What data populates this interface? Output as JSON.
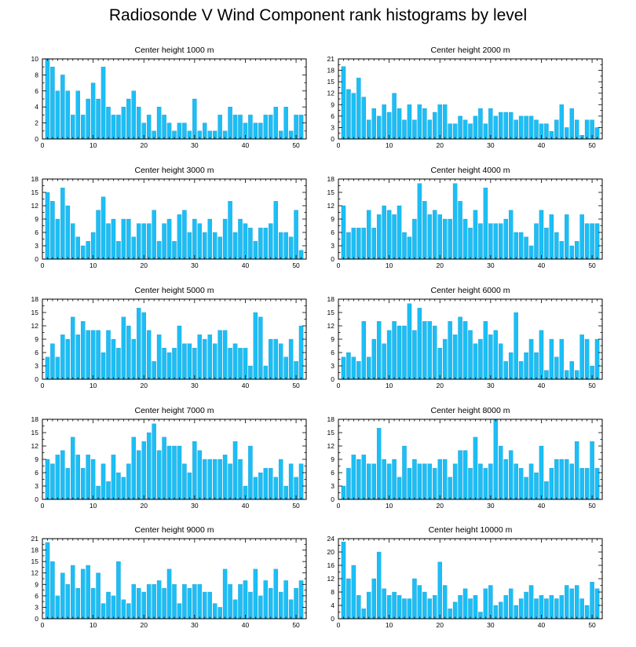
{
  "title": "Radiosonde V Wind Component rank histograms by level",
  "colors": {
    "bar": "#1cbef5",
    "bar_edge": "#0d8fc4",
    "axis": "#000000"
  },
  "chart_data": [
    {
      "type": "bar",
      "title": "Center height 1000 m",
      "xlabel": "",
      "ylabel": "",
      "xlim": [
        0,
        52
      ],
      "ylim": [
        0,
        10
      ],
      "xticks": [
        0,
        10,
        20,
        30,
        40,
        50
      ],
      "yticks": [
        0,
        2,
        4,
        6,
        8,
        10
      ],
      "x": [
        1,
        2,
        3,
        4,
        5,
        6,
        7,
        8,
        9,
        10,
        11,
        12,
        13,
        14,
        15,
        16,
        17,
        18,
        19,
        20,
        21,
        22,
        23,
        24,
        25,
        26,
        27,
        28,
        29,
        30,
        31,
        32,
        33,
        34,
        35,
        36,
        37,
        38,
        39,
        40,
        41,
        42,
        43,
        44,
        45,
        46,
        47,
        48,
        49,
        50,
        51
      ],
      "values": [
        10,
        9,
        6,
        8,
        6,
        3,
        6,
        3,
        5,
        7,
        5,
        9,
        4,
        3,
        3,
        4,
        5,
        6,
        4,
        2,
        3,
        1,
        4,
        3,
        2,
        1,
        2,
        2,
        1,
        5,
        1,
        2,
        1,
        1,
        3,
        1,
        4,
        3,
        3,
        2,
        3,
        2,
        2,
        3,
        3,
        4,
        1,
        4,
        1,
        3,
        3
      ]
    },
    {
      "type": "bar",
      "title": "Center height 2000 m",
      "xlabel": "",
      "ylabel": "",
      "xlim": [
        0,
        52
      ],
      "ylim": [
        0,
        21
      ],
      "xticks": [
        0,
        10,
        20,
        30,
        40,
        50
      ],
      "yticks": [
        0,
        3,
        6,
        9,
        12,
        15,
        18,
        21
      ],
      "x": [
        1,
        2,
        3,
        4,
        5,
        6,
        7,
        8,
        9,
        10,
        11,
        12,
        13,
        14,
        15,
        16,
        17,
        18,
        19,
        20,
        21,
        22,
        23,
        24,
        25,
        26,
        27,
        28,
        29,
        30,
        31,
        32,
        33,
        34,
        35,
        36,
        37,
        38,
        39,
        40,
        41,
        42,
        43,
        44,
        45,
        46,
        47,
        48,
        49,
        50,
        51
      ],
      "values": [
        19,
        13,
        12,
        16,
        11,
        5,
        8,
        6,
        9,
        7,
        12,
        8,
        5,
        9,
        5,
        9,
        8,
        5,
        7,
        9,
        9,
        4,
        4,
        6,
        5,
        4,
        6,
        8,
        4,
        8,
        6,
        7,
        7,
        7,
        5,
        6,
        6,
        6,
        5,
        4,
        4,
        2,
        5,
        9,
        3,
        8,
        5,
        1,
        5,
        5,
        3
      ]
    },
    {
      "type": "bar",
      "title": "Center height 3000 m",
      "xlabel": "",
      "ylabel": "",
      "xlim": [
        0,
        52
      ],
      "ylim": [
        0,
        18
      ],
      "xticks": [
        0,
        10,
        20,
        30,
        40,
        50
      ],
      "yticks": [
        0,
        3,
        6,
        9,
        12,
        15,
        18
      ],
      "x": [
        1,
        2,
        3,
        4,
        5,
        6,
        7,
        8,
        9,
        10,
        11,
        12,
        13,
        14,
        15,
        16,
        17,
        18,
        19,
        20,
        21,
        22,
        23,
        24,
        25,
        26,
        27,
        28,
        29,
        30,
        31,
        32,
        33,
        34,
        35,
        36,
        37,
        38,
        39,
        40,
        41,
        42,
        43,
        44,
        45,
        46,
        47,
        48,
        49,
        50,
        51
      ],
      "values": [
        15,
        13,
        9,
        16,
        12,
        8,
        5,
        3,
        4,
        6,
        11,
        14,
        8,
        9,
        4,
        9,
        9,
        5,
        8,
        8,
        8,
        11,
        4,
        8,
        9,
        4,
        10,
        11,
        6,
        9,
        8,
        6,
        9,
        6,
        5,
        9,
        13,
        6,
        9,
        8,
        7,
        4,
        7,
        7,
        8,
        13,
        6,
        6,
        5,
        11,
        2
      ]
    },
    {
      "type": "bar",
      "title": "Center height 4000 m",
      "xlabel": "",
      "ylabel": "",
      "xlim": [
        0,
        52
      ],
      "ylim": [
        0,
        18
      ],
      "xticks": [
        0,
        10,
        20,
        30,
        40,
        50
      ],
      "yticks": [
        0,
        3,
        6,
        9,
        12,
        15,
        18
      ],
      "x": [
        1,
        2,
        3,
        4,
        5,
        6,
        7,
        8,
        9,
        10,
        11,
        12,
        13,
        14,
        15,
        16,
        17,
        18,
        19,
        20,
        21,
        22,
        23,
        24,
        25,
        26,
        27,
        28,
        29,
        30,
        31,
        32,
        33,
        34,
        35,
        36,
        37,
        38,
        39,
        40,
        41,
        42,
        43,
        44,
        45,
        46,
        47,
        48,
        49,
        50,
        51
      ],
      "values": [
        12,
        6,
        7,
        7,
        7,
        11,
        7,
        10,
        12,
        11,
        10,
        12,
        6,
        5,
        9,
        17,
        13,
        10,
        11,
        10,
        9,
        9,
        17,
        13,
        9,
        7,
        11,
        8,
        16,
        8,
        8,
        8,
        9,
        11,
        6,
        6,
        5,
        3,
        8,
        11,
        7,
        10,
        6,
        4,
        10,
        3,
        4,
        10,
        8,
        8,
        8
      ]
    },
    {
      "type": "bar",
      "title": "Center height 5000 m",
      "xlabel": "",
      "ylabel": "",
      "xlim": [
        0,
        52
      ],
      "ylim": [
        0,
        18
      ],
      "xticks": [
        0,
        10,
        20,
        30,
        40,
        50
      ],
      "yticks": [
        0,
        3,
        6,
        9,
        12,
        15,
        18
      ],
      "x": [
        1,
        2,
        3,
        4,
        5,
        6,
        7,
        8,
        9,
        10,
        11,
        12,
        13,
        14,
        15,
        16,
        17,
        18,
        19,
        20,
        21,
        22,
        23,
        24,
        25,
        26,
        27,
        28,
        29,
        30,
        31,
        32,
        33,
        34,
        35,
        36,
        37,
        38,
        39,
        40,
        41,
        42,
        43,
        44,
        45,
        46,
        47,
        48,
        49,
        50,
        51
      ],
      "values": [
        5,
        8,
        5,
        10,
        9,
        14,
        10,
        13,
        11,
        11,
        11,
        6,
        11,
        9,
        7,
        14,
        12,
        9,
        16,
        15,
        11,
        4,
        10,
        7,
        6,
        7,
        12,
        8,
        8,
        7,
        10,
        9,
        10,
        8,
        11,
        11,
        7,
        8,
        7,
        7,
        3,
        15,
        14,
        3,
        9,
        9,
        8,
        5,
        9,
        4,
        12
      ]
    },
    {
      "type": "bar",
      "title": "Center height 6000 m",
      "xlabel": "",
      "ylabel": "",
      "xlim": [
        0,
        52
      ],
      "ylim": [
        0,
        18
      ],
      "xticks": [
        0,
        10,
        20,
        30,
        40,
        50
      ],
      "yticks": [
        0,
        3,
        6,
        9,
        12,
        15,
        18
      ],
      "x": [
        1,
        2,
        3,
        4,
        5,
        6,
        7,
        8,
        9,
        10,
        11,
        12,
        13,
        14,
        15,
        16,
        17,
        18,
        19,
        20,
        21,
        22,
        23,
        24,
        25,
        26,
        27,
        28,
        29,
        30,
        31,
        32,
        33,
        34,
        35,
        36,
        37,
        38,
        39,
        40,
        41,
        42,
        43,
        44,
        45,
        46,
        47,
        48,
        49,
        50,
        51
      ],
      "values": [
        5,
        6,
        5,
        4,
        13,
        5,
        9,
        13,
        8,
        11,
        13,
        12,
        12,
        17,
        11,
        16,
        13,
        13,
        12,
        7,
        9,
        13,
        10,
        14,
        13,
        11,
        8,
        9,
        13,
        10,
        11,
        8,
        4,
        6,
        15,
        4,
        6,
        9,
        6,
        11,
        2,
        9,
        5,
        9,
        2,
        4,
        2,
        10,
        9,
        3,
        9
      ]
    },
    {
      "type": "bar",
      "title": "Center height 7000 m",
      "xlabel": "",
      "ylabel": "",
      "xlim": [
        0,
        52
      ],
      "ylim": [
        0,
        18
      ],
      "xticks": [
        0,
        10,
        20,
        30,
        40,
        50
      ],
      "yticks": [
        0,
        3,
        6,
        9,
        12,
        15,
        18
      ],
      "x": [
        1,
        2,
        3,
        4,
        5,
        6,
        7,
        8,
        9,
        10,
        11,
        12,
        13,
        14,
        15,
        16,
        17,
        18,
        19,
        20,
        21,
        22,
        23,
        24,
        25,
        26,
        27,
        28,
        29,
        30,
        31,
        32,
        33,
        34,
        35,
        36,
        37,
        38,
        39,
        40,
        41,
        42,
        43,
        44,
        45,
        46,
        47,
        48,
        49,
        50,
        51
      ],
      "values": [
        9,
        8,
        10,
        11,
        7,
        14,
        10,
        7,
        10,
        9,
        3,
        8,
        4,
        10,
        6,
        5,
        8,
        14,
        11,
        13,
        15,
        17,
        11,
        14,
        12,
        12,
        12,
        8,
        6,
        13,
        11,
        9,
        9,
        9,
        9,
        10,
        8,
        13,
        9,
        3,
        12,
        5,
        6,
        7,
        7,
        5,
        9,
        3,
        8,
        5,
        8
      ]
    },
    {
      "type": "bar",
      "title": "Center height 8000 m",
      "xlabel": "",
      "ylabel": "",
      "xlim": [
        0,
        52
      ],
      "ylim": [
        0,
        18
      ],
      "xticks": [
        0,
        10,
        20,
        30,
        40,
        50
      ],
      "yticks": [
        0,
        3,
        6,
        9,
        12,
        15,
        18
      ],
      "x": [
        1,
        2,
        3,
        4,
        5,
        6,
        7,
        8,
        9,
        10,
        11,
        12,
        13,
        14,
        15,
        16,
        17,
        18,
        19,
        20,
        21,
        22,
        23,
        24,
        25,
        26,
        27,
        28,
        29,
        30,
        31,
        32,
        33,
        34,
        35,
        36,
        37,
        38,
        39,
        40,
        41,
        42,
        43,
        44,
        45,
        46,
        47,
        48,
        49,
        50,
        51
      ],
      "values": [
        3,
        7,
        10,
        9,
        10,
        8,
        8,
        16,
        9,
        8,
        9,
        5,
        12,
        7,
        9,
        8,
        8,
        8,
        7,
        9,
        9,
        5,
        8,
        11,
        11,
        7,
        14,
        8,
        7,
        8,
        18,
        12,
        9,
        11,
        8,
        7,
        5,
        8,
        6,
        12,
        4,
        7,
        9,
        9,
        9,
        8,
        13,
        7,
        7,
        13,
        7
      ]
    },
    {
      "type": "bar",
      "title": "Center height 9000 m",
      "xlabel": "",
      "ylabel": "",
      "xlim": [
        0,
        52
      ],
      "ylim": [
        0,
        21
      ],
      "xticks": [
        0,
        10,
        20,
        30,
        40,
        50
      ],
      "yticks": [
        0,
        3,
        6,
        9,
        12,
        15,
        18,
        21
      ],
      "x": [
        1,
        2,
        3,
        4,
        5,
        6,
        7,
        8,
        9,
        10,
        11,
        12,
        13,
        14,
        15,
        16,
        17,
        18,
        19,
        20,
        21,
        22,
        23,
        24,
        25,
        26,
        27,
        28,
        29,
        30,
        31,
        32,
        33,
        34,
        35,
        36,
        37,
        38,
        39,
        40,
        41,
        42,
        43,
        44,
        45,
        46,
        47,
        48,
        49,
        50,
        51
      ],
      "values": [
        20,
        15,
        6,
        12,
        9,
        14,
        8,
        13,
        14,
        8,
        12,
        4,
        7,
        6,
        15,
        5,
        4,
        9,
        8,
        7,
        9,
        9,
        10,
        8,
        13,
        9,
        4,
        9,
        8,
        9,
        9,
        7,
        7,
        4,
        3,
        13,
        9,
        5,
        9,
        10,
        7,
        13,
        6,
        10,
        8,
        13,
        7,
        10,
        5,
        8,
        10
      ]
    },
    {
      "type": "bar",
      "title": "Center height 10000 m",
      "xlabel": "",
      "ylabel": "",
      "xlim": [
        0,
        52
      ],
      "ylim": [
        0,
        24
      ],
      "xticks": [
        0,
        10,
        20,
        30,
        40,
        50
      ],
      "yticks": [
        0,
        4,
        8,
        12,
        16,
        20,
        24
      ],
      "x": [
        1,
        2,
        3,
        4,
        5,
        6,
        7,
        8,
        9,
        10,
        11,
        12,
        13,
        14,
        15,
        16,
        17,
        18,
        19,
        20,
        21,
        22,
        23,
        24,
        25,
        26,
        27,
        28,
        29,
        30,
        31,
        32,
        33,
        34,
        35,
        36,
        37,
        38,
        39,
        40,
        41,
        42,
        43,
        44,
        45,
        46,
        47,
        48,
        49,
        50,
        51
      ],
      "values": [
        23,
        12,
        16,
        7,
        3,
        8,
        12,
        20,
        9,
        7,
        8,
        7,
        6,
        6,
        12,
        10,
        8,
        6,
        7,
        17,
        10,
        3,
        5,
        7,
        9,
        6,
        7,
        2,
        9,
        10,
        4,
        5,
        7,
        9,
        4,
        6,
        8,
        10,
        6,
        7,
        6,
        7,
        6,
        7,
        10,
        9,
        10,
        6,
        4,
        11,
        9
      ]
    }
  ]
}
